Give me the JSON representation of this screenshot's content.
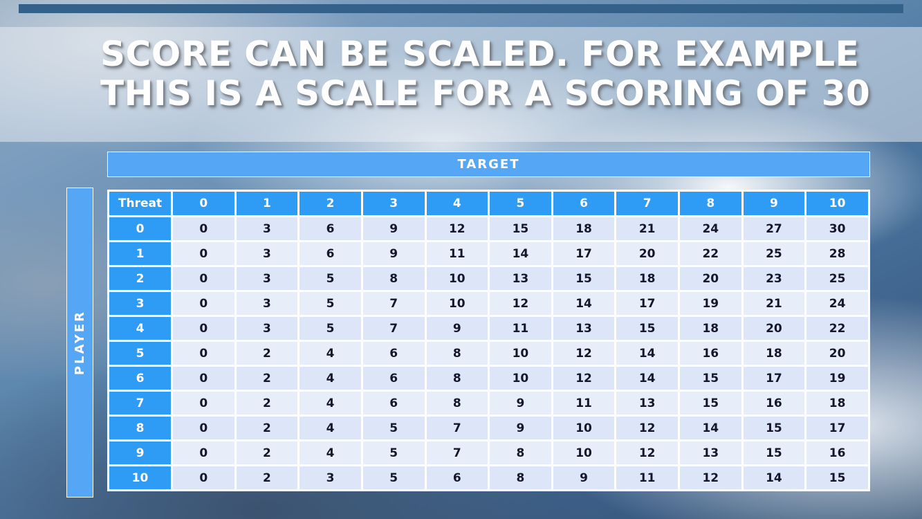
{
  "slide": {
    "title_line1": "SCORE CAN BE SCALED. FOR EXAMPLE",
    "title_line2": "THIS IS A SCALE FOR A SCORING OF 30"
  },
  "table": {
    "target_label": "TARGET",
    "player_label": "PLAYER",
    "corner_label": "Threat",
    "column_headers": [
      "0",
      "1",
      "2",
      "3",
      "4",
      "5",
      "6",
      "7",
      "8",
      "9",
      "10"
    ],
    "row_headers": [
      "0",
      "1",
      "2",
      "3",
      "4",
      "5",
      "6",
      "7",
      "8",
      "9",
      "10"
    ],
    "rows": [
      [
        0,
        3,
        6,
        9,
        12,
        15,
        18,
        21,
        24,
        27,
        30
      ],
      [
        0,
        3,
        6,
        9,
        11,
        14,
        17,
        20,
        22,
        25,
        28
      ],
      [
        0,
        3,
        5,
        8,
        10,
        13,
        15,
        18,
        20,
        23,
        25
      ],
      [
        0,
        3,
        5,
        7,
        10,
        12,
        14,
        17,
        19,
        21,
        24
      ],
      [
        0,
        3,
        5,
        7,
        9,
        11,
        13,
        15,
        18,
        20,
        22
      ],
      [
        0,
        2,
        4,
        6,
        8,
        10,
        12,
        14,
        16,
        18,
        20
      ],
      [
        0,
        2,
        4,
        6,
        8,
        10,
        12,
        14,
        15,
        17,
        19
      ],
      [
        0,
        2,
        4,
        6,
        8,
        9,
        11,
        13,
        15,
        16,
        18
      ],
      [
        0,
        2,
        4,
        5,
        7,
        9,
        10,
        12,
        14,
        15,
        17
      ],
      [
        0,
        2,
        4,
        5,
        7,
        8,
        10,
        12,
        13,
        15,
        16
      ],
      [
        0,
        2,
        3,
        5,
        6,
        8,
        9,
        11,
        12,
        14,
        15
      ]
    ]
  },
  "colors": {
    "bar_blue": "#55a7f5",
    "header_blue": "#2e9bf4",
    "row_light": "#dde6f8",
    "row_lighter": "#e8edfa",
    "top_bar": "#34618a"
  }
}
